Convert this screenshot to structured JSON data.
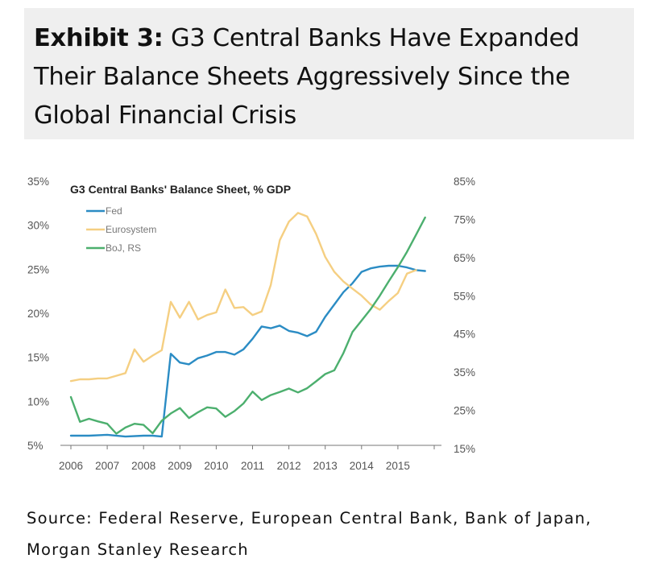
{
  "header": {
    "exhibit": "Exhibit 3:",
    "title": "G3 Central Banks Have Expanded Their Balance Sheets Aggressively Since the Global Financial Crisis"
  },
  "source": "Source: Federal Reserve, European Central Bank, Bank of Japan, Morgan Stanley Research",
  "chart_data": {
    "type": "line",
    "title": "G3 Central Banks' Balance Sheet, % GDP",
    "x_ticks": [
      "2006",
      "2007",
      "2008",
      "2009",
      "2010",
      "2011",
      "2012",
      "2013",
      "2014",
      "2015"
    ],
    "xlim": [
      2006,
      2016
    ],
    "left_axis": {
      "ticks": [
        "5%",
        "10%",
        "15%",
        "20%",
        "25%",
        "30%",
        "35%"
      ],
      "ylim": [
        5,
        35
      ]
    },
    "right_axis": {
      "ticks": [
        "15%",
        "25%",
        "35%",
        "45%",
        "55%",
        "65%",
        "75%",
        "85%"
      ],
      "ylim": [
        15,
        85
      ]
    },
    "legend_position": "top-left",
    "grid": false,
    "series": [
      {
        "name": "Fed",
        "axis": "left",
        "color": "#2b8cc4",
        "x": [
          2006.0,
          2006.5,
          2007.0,
          2007.5,
          2008.0,
          2008.25,
          2008.5,
          2008.75,
          2009.0,
          2009.25,
          2009.5,
          2009.75,
          2010.0,
          2010.25,
          2010.5,
          2010.75,
          2011.0,
          2011.25,
          2011.5,
          2011.75,
          2012.0,
          2012.25,
          2012.5,
          2012.75,
          2013.0,
          2013.25,
          2013.5,
          2013.75,
          2014.0,
          2014.25,
          2014.5,
          2014.75,
          2015.0,
          2015.25,
          2015.5,
          2015.75
        ],
        "y": [
          6.1,
          6.1,
          6.2,
          6.0,
          6.1,
          6.1,
          6.0,
          15.4,
          14.4,
          14.2,
          14.9,
          15.2,
          15.6,
          15.6,
          15.3,
          15.9,
          17.1,
          18.5,
          18.3,
          18.6,
          18.0,
          17.8,
          17.4,
          17.9,
          19.6,
          21.0,
          22.4,
          23.4,
          24.7,
          25.1,
          25.3,
          25.4,
          25.4,
          25.2,
          24.9,
          24.8
        ]
      },
      {
        "name": "Eurosystem",
        "axis": "left",
        "color": "#f5cf82",
        "x": [
          2006.0,
          2006.25,
          2006.5,
          2006.75,
          2007.0,
          2007.25,
          2007.5,
          2007.75,
          2008.0,
          2008.25,
          2008.5,
          2008.75,
          2009.0,
          2009.25,
          2009.5,
          2009.75,
          2010.0,
          2010.25,
          2010.5,
          2010.75,
          2011.0,
          2011.25,
          2011.5,
          2011.75,
          2012.0,
          2012.25,
          2012.5,
          2012.75,
          2013.0,
          2013.25,
          2013.5,
          2013.75,
          2014.0,
          2014.25,
          2014.5,
          2014.75,
          2015.0,
          2015.25,
          2015.5
        ],
        "y": [
          12.3,
          12.5,
          12.5,
          12.6,
          12.6,
          12.9,
          13.2,
          15.9,
          14.5,
          15.2,
          15.8,
          21.3,
          19.5,
          21.3,
          19.3,
          19.8,
          20.1,
          22.7,
          20.6,
          20.7,
          19.8,
          20.2,
          23.2,
          28.3,
          30.4,
          31.4,
          31.0,
          29.0,
          26.4,
          24.7,
          23.6,
          22.8,
          22.0,
          21.0,
          20.4,
          21.4,
          22.3,
          24.5,
          24.9
        ]
      },
      {
        "name": "BoJ, RS",
        "axis": "right",
        "color": "#4caf6e",
        "x": [
          2006.0,
          2006.25,
          2006.5,
          2006.75,
          2007.0,
          2007.25,
          2007.5,
          2007.75,
          2008.0,
          2008.25,
          2008.5,
          2008.75,
          2009.0,
          2009.25,
          2009.5,
          2009.75,
          2010.0,
          2010.25,
          2010.5,
          2010.75,
          2011.0,
          2011.25,
          2011.5,
          2011.75,
          2012.0,
          2012.25,
          2012.5,
          2012.75,
          2013.0,
          2013.25,
          2013.5,
          2013.75,
          2014.0,
          2014.25,
          2014.5,
          2014.75,
          2015.0,
          2015.25,
          2015.5,
          2015.75
        ],
        "y": [
          28.5,
          22.0,
          22.8,
          22.1,
          21.5,
          18.9,
          20.5,
          21.5,
          21.2,
          19.0,
          22.3,
          24.2,
          25.6,
          23.0,
          24.5,
          25.8,
          25.5,
          23.3,
          24.8,
          26.8,
          29.9,
          27.7,
          29.0,
          29.8,
          30.7,
          29.7,
          30.8,
          32.6,
          34.5,
          35.5,
          40.0,
          45.5,
          48.5,
          51.5,
          55.0,
          58.8,
          62.5,
          66.5,
          71.0,
          75.5
        ]
      }
    ]
  }
}
